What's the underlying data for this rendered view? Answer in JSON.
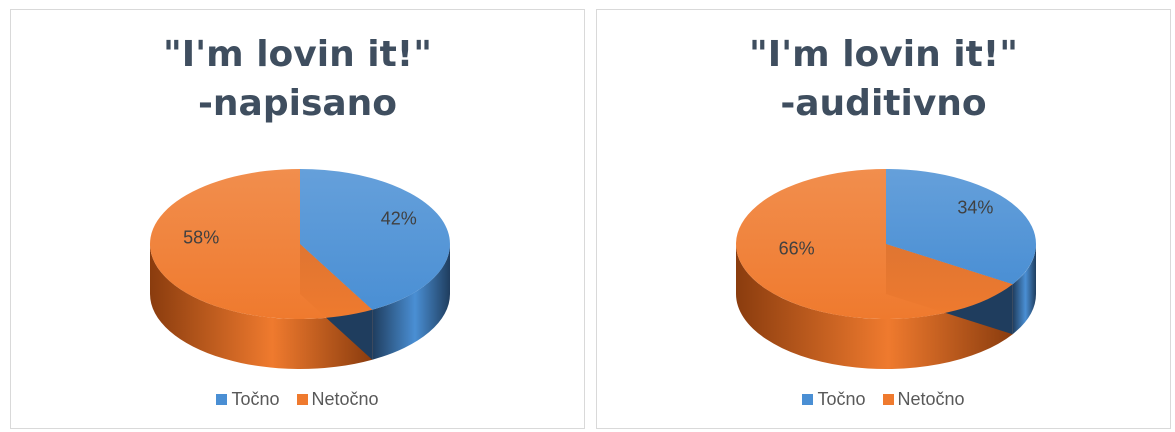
{
  "colors": {
    "tocno": "#4a8fd4",
    "tocno_dark": "#1f3d5e",
    "netocno": "#ef7a2e",
    "netocno_dark": "#8a3c0e",
    "title": "#3f4e5f"
  },
  "chart_data": [
    {
      "type": "pie",
      "title_lines": [
        "\"I'm lovin it!\"",
        "-napisano"
      ],
      "slices": [
        {
          "name": "Točno",
          "value": 42,
          "label": "42%"
        },
        {
          "name": "Netočno",
          "value": 58,
          "label": "58%"
        }
      ],
      "legend": [
        "Točno",
        "Netočno"
      ],
      "legend_position": "bottom"
    },
    {
      "type": "pie",
      "title_lines": [
        "\"I'm lovin it!\"",
        "-auditivno"
      ],
      "slices": [
        {
          "name": "Točno",
          "value": 34,
          "label": "34%"
        },
        {
          "name": "Netočno",
          "value": 66,
          "label": "66%"
        }
      ],
      "legend": [
        "Točno",
        "Netočno"
      ],
      "legend_position": "bottom"
    }
  ]
}
